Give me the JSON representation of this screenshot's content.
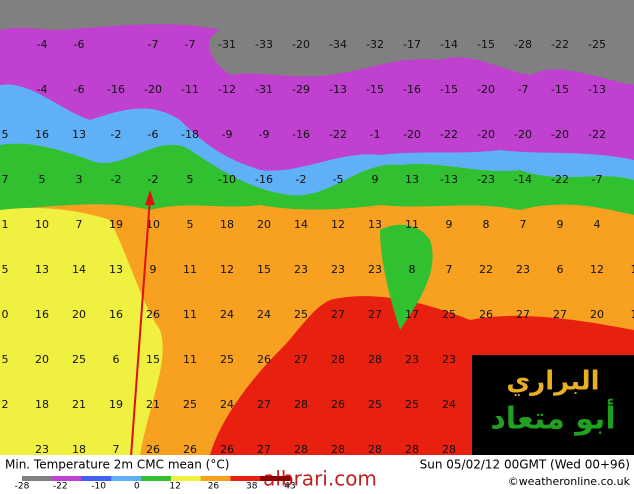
{
  "map": {
    "rows": [
      [
        null,
        -4,
        -6,
        null,
        -7,
        -7,
        -31,
        -33,
        -20,
        -34,
        -32,
        -17,
        -14,
        -15,
        -28,
        -22,
        -25,
        null
      ],
      [
        null,
        -4,
        -6,
        -16,
        -20,
        -11,
        -12,
        -31,
        -29,
        -13,
        -15,
        -16,
        -15,
        -20,
        -7,
        -15,
        -13,
        null
      ],
      [
        5,
        16,
        13,
        -2,
        -6,
        -18,
        -9,
        -9,
        -16,
        -22,
        -1,
        -20,
        -22,
        -20,
        -20,
        -20,
        -22,
        null
      ],
      [
        7,
        5,
        3,
        -2,
        -2,
        5,
        -10,
        -16,
        -2,
        -5,
        9,
        13,
        -13,
        -23,
        -14,
        -22,
        -7,
        null
      ],
      [
        1,
        10,
        7,
        19,
        10,
        5,
        18,
        20,
        14,
        12,
        13,
        11,
        9,
        8,
        7,
        9,
        4,
        null
      ],
      [
        5,
        13,
        14,
        13,
        9,
        11,
        12,
        15,
        23,
        23,
        23,
        8,
        7,
        22,
        23,
        6,
        12,
        1
      ],
      [
        0,
        16,
        20,
        16,
        26,
        11,
        24,
        24,
        25,
        27,
        27,
        17,
        25,
        26,
        27,
        27,
        20,
        1
      ],
      [
        5,
        20,
        25,
        6,
        15,
        11,
        25,
        26,
        27,
        28,
        28,
        23,
        23,
        null,
        null,
        null,
        null,
        null
      ],
      [
        2,
        18,
        21,
        19,
        21,
        25,
        24,
        27,
        28,
        26,
        25,
        25,
        24,
        null,
        null,
        null,
        null,
        null
      ],
      [
        null,
        23,
        18,
        7,
        26,
        26,
        26,
        27,
        28,
        28,
        28,
        28,
        28,
        null,
        null,
        null,
        null,
        null
      ]
    ]
  },
  "footer": {
    "title": "Min. Temperature 2m CMC mean (°C)",
    "date": "Sun 05/02/12 00GMT  (Wed 00+96)",
    "credit": "©weatheronline.co.uk"
  },
  "legend": {
    "ticks": [
      -28,
      -22,
      -10,
      0,
      12,
      26,
      38,
      43
    ]
  },
  "watermark": "albrari.com",
  "logo": {
    "line1": "البراري",
    "line2": "أبو متعاد"
  }
}
